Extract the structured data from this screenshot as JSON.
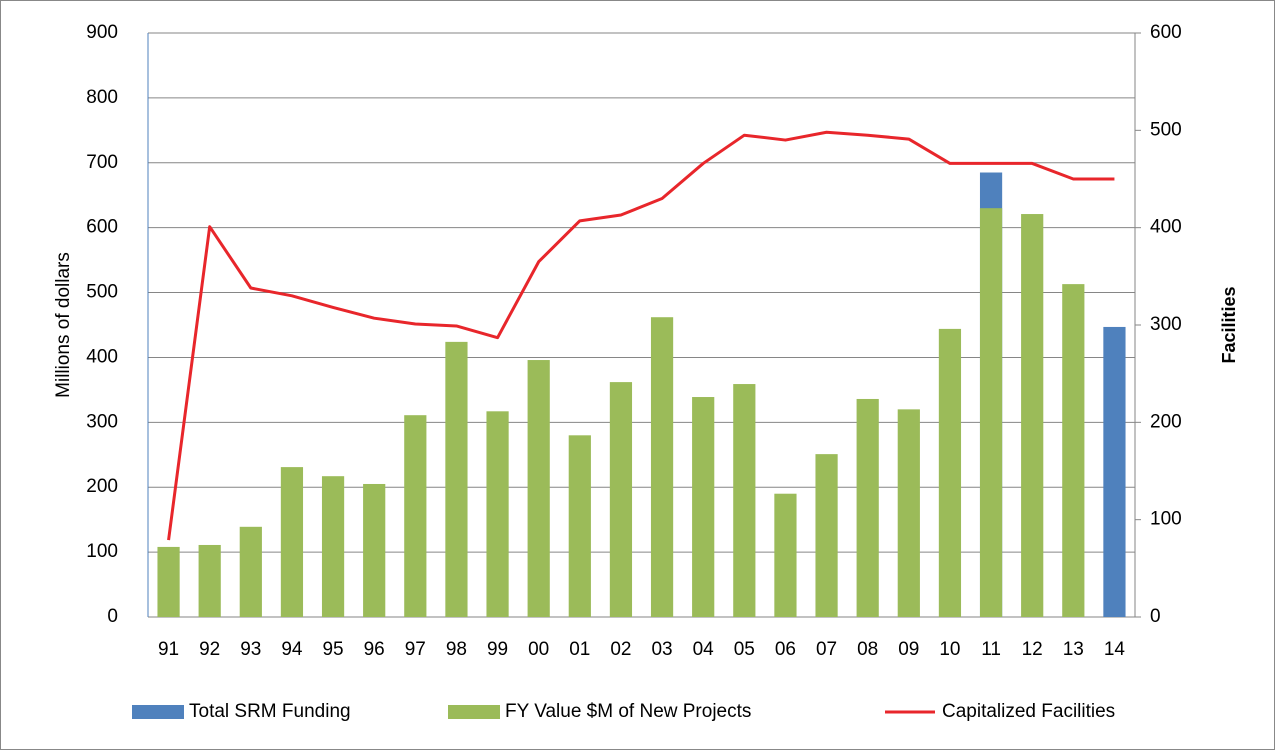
{
  "chart_data": {
    "type": "bar",
    "categories": [
      "91",
      "92",
      "93",
      "94",
      "95",
      "96",
      "97",
      "98",
      "99",
      "00",
      "01",
      "02",
      "03",
      "04",
      "05",
      "06",
      "07",
      "08",
      "09",
      "10",
      "11",
      "12",
      "13",
      "14"
    ],
    "ylabel": "Millions of dollars",
    "y2label": "Facilities",
    "ylim": [
      0,
      900
    ],
    "yticks": [
      0,
      100,
      200,
      300,
      400,
      500,
      600,
      700,
      800,
      900
    ],
    "y2lim": [
      0,
      600
    ],
    "y2ticks": [
      0,
      100,
      200,
      300,
      400,
      500,
      600
    ],
    "grid": true,
    "legend": "bottom",
    "series": [
      {
        "name": "Total SRM Funding",
        "type": "bar",
        "color": "#4f81bd",
        "values": [
          null,
          null,
          null,
          null,
          null,
          null,
          null,
          null,
          null,
          null,
          null,
          null,
          null,
          null,
          null,
          null,
          null,
          null,
          null,
          null,
          685,
          null,
          null,
          447
        ]
      },
      {
        "name": "FY Value $M of New Projects",
        "type": "bar",
        "color": "#9bbb59",
        "values": [
          108,
          111,
          139,
          231,
          217,
          205,
          311,
          424,
          317,
          396,
          280,
          362,
          462,
          339,
          359,
          190,
          251,
          336,
          320,
          444,
          630,
          621,
          513,
          null
        ]
      },
      {
        "name": "Capitalized Facilities",
        "type": "line",
        "color": "#e8262b",
        "axis": "y2",
        "values": [
          79,
          401,
          338,
          330,
          318,
          307,
          301,
          299,
          287,
          365,
          407,
          413,
          430,
          466,
          495,
          490,
          498,
          495,
          491,
          466,
          466,
          466,
          450,
          450
        ]
      }
    ]
  }
}
